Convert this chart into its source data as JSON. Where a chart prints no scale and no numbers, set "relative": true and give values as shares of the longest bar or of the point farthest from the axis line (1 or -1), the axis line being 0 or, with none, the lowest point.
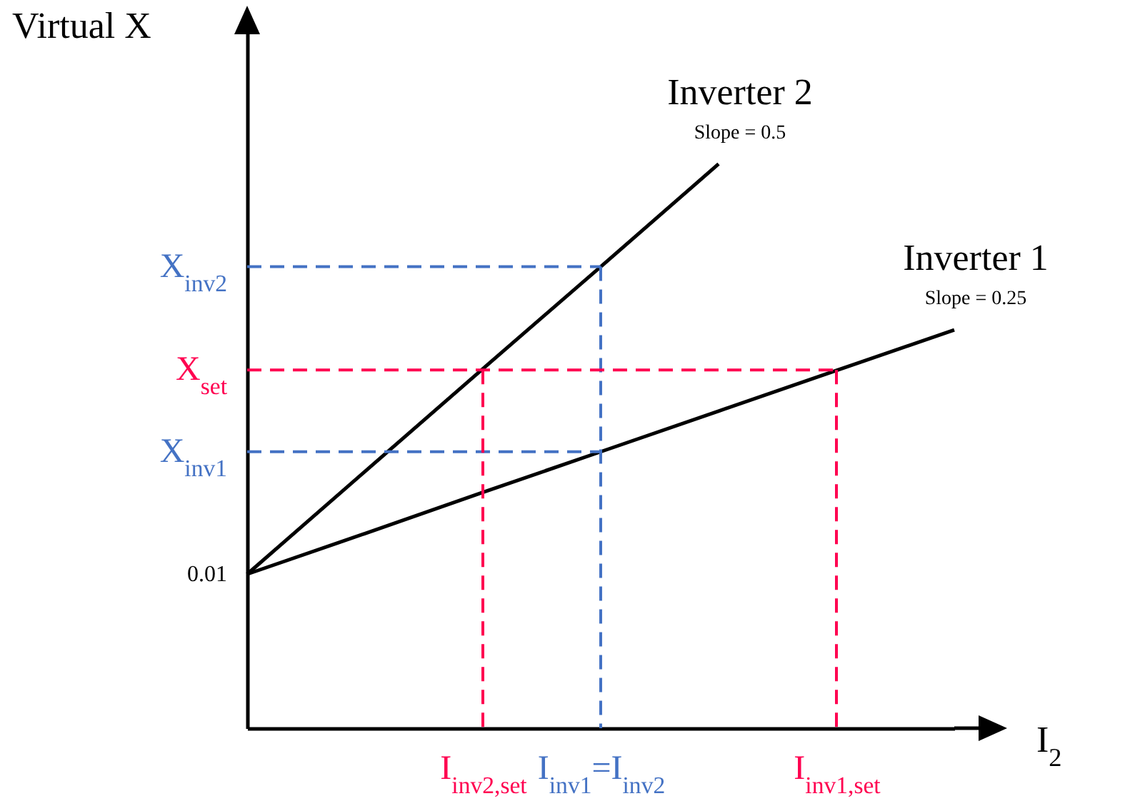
{
  "chart_data": {
    "type": "line",
    "relative": true,
    "xlabel": "I$_{2}$",
    "ylabel": "Virtual X",
    "categories": [
      null,
      null,
      "I$_{inv2,set}$",
      "I$_{inv1}$=I$_{inv2}$",
      null,
      "I$_{inv1,set}$",
      null
    ],
    "series": [
      {
        "name": "Inverter 2",
        "color": "#000000",
        "values": [
          0.273,
          0.455,
          0.637,
          0.818,
          1,
          null,
          null
        ]
      },
      {
        "name": "Inverter 1",
        "color": "#000000",
        "values": [
          0.273,
          0.345,
          0.418,
          0.49,
          0.562,
          0.634,
          0.706
        ]
      },
      {
        "color": "#4472c4",
        "line_style": "dashed",
        "values": [
          0.818,
          0.818,
          0.818,
          0.818,
          null,
          null,
          null
        ]
      },
      {
        "color": "#4472c4",
        "line_style": "dashed",
        "x": [
          "I$_{inv1}$=I$_{inv2}$",
          "I$_{inv1}$=I$_{inv2}$"
        ],
        "values": [
          0.818,
          0
        ]
      },
      {
        "color": "#4472c4",
        "line_style": "dashed",
        "values": [
          0.49,
          0.49,
          0.49,
          0.49,
          null,
          null,
          null
        ]
      },
      {
        "color": "#ff0050",
        "line_style": "dashed",
        "values": [
          0.635,
          0.635,
          0.635,
          0.635,
          0.635,
          0.635,
          null
        ]
      },
      {
        "color": "#ff0050",
        "line_style": "dashed",
        "x": [
          "I$_{inv2,set}$",
          "I$_{inv2,set}$"
        ],
        "values": [
          0.635,
          0
        ]
      },
      {
        "color": "#ff0050",
        "line_style": "dashed",
        "x": [
          "I$_{inv1,set}$",
          "I$_{inv1,set}$"
        ],
        "values": [
          0.635,
          0
        ]
      }
    ],
    "annotations": [
      "Slope = 0.5",
      "Slope = 0.25",
      "X$_{inv2}$",
      "X$_{set}$",
      "X$_{inv1}$",
      "0.01"
    ]
  }
}
